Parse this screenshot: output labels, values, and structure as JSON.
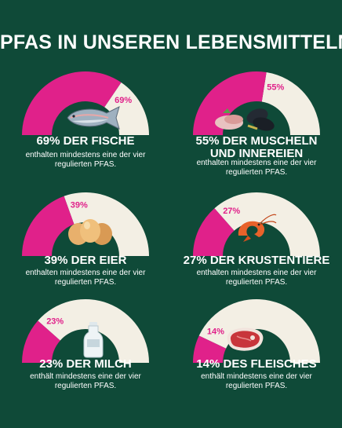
{
  "title": "PFAS IN UNSEREN LEBENSMITTELN:",
  "colors": {
    "background": "#0f4a38",
    "filled": "#e0218a",
    "remaining": "#f3efe4",
    "label_on_light": "#e0218a"
  },
  "chart_data": [
    {
      "type": "pie",
      "category": "Fische",
      "value": 69,
      "label": "69%",
      "headline": [
        "69% DER FISCHE"
      ],
      "description": [
        "enthalten mindestens eine der vier",
        "regulierten PFAS."
      ],
      "icon": "fish-icon"
    },
    {
      "type": "pie",
      "category": "Muscheln und Innereien",
      "value": 55,
      "label": "55%",
      "headline": [
        "55% DER MUSCHELN",
        "UND INNEREIEN"
      ],
      "description": [
        "enthalten mindestens eine der vier",
        "regulierten PFAS."
      ],
      "icon": "mussels-icon"
    },
    {
      "type": "pie",
      "category": "Eier",
      "value": 39,
      "label": "39%",
      "headline": [
        "39% DER EIER"
      ],
      "description": [
        "enthalten mindestens eine der vier",
        "regulierten PFAS."
      ],
      "icon": "eggs-icon"
    },
    {
      "type": "pie",
      "category": "Krustentiere",
      "value": 27,
      "label": "27%",
      "headline": [
        "27% DER KRUSTENTIERE"
      ],
      "description": [
        "enthalten mindestens eine der vier",
        "regulierten PFAS."
      ],
      "icon": "shrimp-icon"
    },
    {
      "type": "pie",
      "category": "Milch",
      "value": 23,
      "label": "23%",
      "headline": [
        "23% DER MILCH"
      ],
      "description": [
        "enthält mindestens eine der vier",
        "regulierten PFAS."
      ],
      "icon": "milk-bottle-icon"
    },
    {
      "type": "pie",
      "category": "Fleisch",
      "value": 14,
      "label": "14%",
      "headline": [
        "14% DES FLEISCHES"
      ],
      "description": [
        "enthält mindestens eine der vier",
        "regulierten PFAS."
      ],
      "icon": "steak-icon"
    }
  ]
}
